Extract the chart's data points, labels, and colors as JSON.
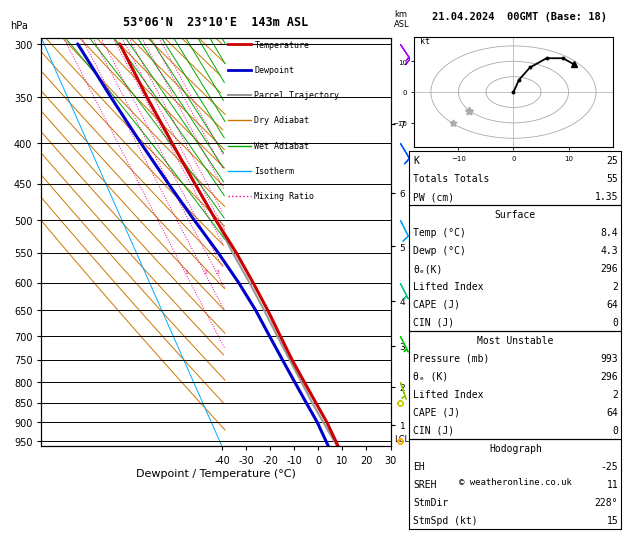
{
  "title_left": "53°06'N  23°10'E  143m ASL",
  "title_date": "21.04.2024  00GMT (Base: 18)",
  "xlabel": "Dewpoint / Temperature (°C)",
  "ylabel_left": "hPa",
  "copyright": "© weatheronline.co.uk",
  "pressure_levels": [
    300,
    350,
    400,
    450,
    500,
    550,
    600,
    650,
    700,
    750,
    800,
    850,
    900,
    950
  ],
  "p_min": 295,
  "p_max": 965,
  "temp_min": -40,
  "temp_max": 35,
  "isotherm_color": "#00aaff",
  "dry_adiabat_color": "#cc7700",
  "wet_adiabat_color": "#00aa00",
  "mixing_ratio_color": "#ee0088",
  "temp_profile_temps": [
    -8.5,
    -7,
    -5,
    -3,
    -1,
    1.5,
    3,
    4,
    4.5,
    5,
    6,
    7,
    8,
    8.4
  ],
  "temp_profile_pressures": [
    300,
    350,
    400,
    450,
    500,
    550,
    600,
    650,
    700,
    750,
    800,
    850,
    900,
    993
  ],
  "dewp_profile_temps": [
    -26,
    -22,
    -18,
    -14,
    -10,
    -6,
    -3,
    -1,
    0,
    1,
    2,
    3,
    4,
    4.3
  ],
  "dewp_profile_pressures": [
    300,
    350,
    400,
    450,
    500,
    550,
    600,
    650,
    700,
    750,
    800,
    850,
    900,
    993
  ],
  "parcel_temps": [
    -8.5,
    -7,
    -5,
    -3,
    -1,
    0,
    1.5,
    2.5,
    3.2,
    4,
    4.8,
    5.5,
    6.5,
    8.4
  ],
  "parcel_pressures": [
    300,
    350,
    400,
    450,
    500,
    550,
    600,
    650,
    700,
    750,
    800,
    850,
    900,
    993
  ],
  "temp_color": "#cc0000",
  "dewp_color": "#0000cc",
  "parcel_color": "#999999",
  "mixing_ratios": [
    1,
    2,
    3,
    4,
    6,
    8,
    10,
    15,
    20,
    25
  ],
  "mixing_ratio_label_p": 585,
  "km_ticks": [
    1,
    2,
    3,
    4,
    5,
    6,
    7
  ],
  "km_pressures": [
    907,
    812,
    721,
    632,
    540,
    462,
    378
  ],
  "lcl_pressure": 943,
  "legend_entries": [
    {
      "label": "Temperature",
      "color": "#cc0000",
      "lw": 2.0,
      "ls": "solid"
    },
    {
      "label": "Dewpoint",
      "color": "#0000cc",
      "lw": 2.0,
      "ls": "solid"
    },
    {
      "label": "Parcel Trajectory",
      "color": "#999999",
      "lw": 1.5,
      "ls": "solid"
    },
    {
      "label": "Dry Adiabat",
      "color": "#cc7700",
      "lw": 1.0,
      "ls": "solid"
    },
    {
      "label": "Wet Adiabat",
      "color": "#00aa00",
      "lw": 1.0,
      "ls": "solid"
    },
    {
      "label": "Isotherm",
      "color": "#00aaff",
      "lw": 1.0,
      "ls": "solid"
    },
    {
      "label": "Mixing Ratio",
      "color": "#ee0088",
      "lw": 1.0,
      "ls": "dotted"
    }
  ],
  "wind_barbs": [
    {
      "p": 300,
      "u": -8,
      "v": 12,
      "color": "#aa00ff"
    },
    {
      "p": 400,
      "u": -6,
      "v": 10,
      "color": "#0055ff"
    },
    {
      "p": 500,
      "u": -4,
      "v": 8,
      "color": "#00aaff"
    },
    {
      "p": 600,
      "u": -3,
      "v": 6,
      "color": "#00cc88"
    },
    {
      "p": 700,
      "u": -2,
      "v": 4,
      "color": "#00cc00"
    },
    {
      "p": 800,
      "u": -1,
      "v": 3,
      "color": "#88cc00"
    },
    {
      "p": 850,
      "u": 0,
      "v": 2,
      "color": "#cccc00"
    },
    {
      "p": 950,
      "u": 1,
      "v": 2,
      "color": "#ffaa00"
    }
  ],
  "stats": {
    "K": 25,
    "Totals_Totals": 55,
    "PW_cm": 1.35,
    "Surface_Temp": 8.4,
    "Surface_Dewp": 4.3,
    "Surface_theta_e": 296,
    "Surface_LI": 2,
    "Surface_CAPE": 64,
    "Surface_CIN": 0,
    "MU_Pressure": 993,
    "MU_theta_e": 296,
    "MU_LI": 2,
    "MU_CAPE": 64,
    "MU_CIN": 0,
    "EH": -25,
    "SREH": 11,
    "StmDir": 228,
    "StmSpd": 15
  },
  "background_color": "#ffffff"
}
